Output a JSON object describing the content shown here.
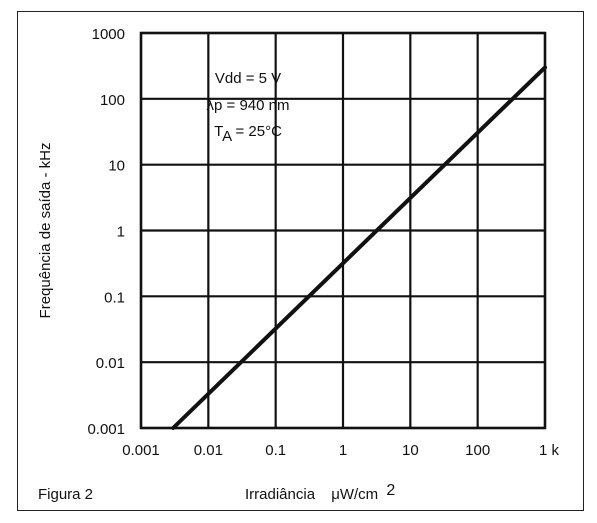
{
  "figure": {
    "caption": "Figura 2"
  },
  "chart_data": {
    "type": "line",
    "x_scale": "log",
    "y_scale": "log",
    "xlabel": "Irradiância",
    "xlabel_unit": "μW/cm",
    "xlabel_unit_sup": "2",
    "ylabel": "Frequência de saída - kHz",
    "xlim": [
      0.001,
      1000
    ],
    "ylim": [
      0.001,
      1000
    ],
    "x_ticks": [
      0.001,
      0.01,
      0.1,
      1,
      10,
      100,
      1000
    ],
    "x_tick_labels": [
      "0.001",
      "0.01",
      "0.1",
      "1",
      "10",
      "100",
      "1 k"
    ],
    "y_ticks": [
      0.001,
      0.01,
      0.1,
      1,
      10,
      100,
      1000
    ],
    "y_tick_labels": [
      "0.001",
      "0.01",
      "0.1",
      "1",
      "10",
      "100",
      "1000"
    ],
    "grid": true,
    "series": [
      {
        "x": [
          0.003,
          1000
        ],
        "y": [
          0.001,
          300
        ]
      }
    ],
    "annotations": [
      {
        "text": "Vdd = 5 V"
      },
      {
        "text": "λp = 940 nm"
      },
      {
        "prefix": "T",
        "sub": "A",
        "suffix": " = 25°C"
      }
    ]
  }
}
